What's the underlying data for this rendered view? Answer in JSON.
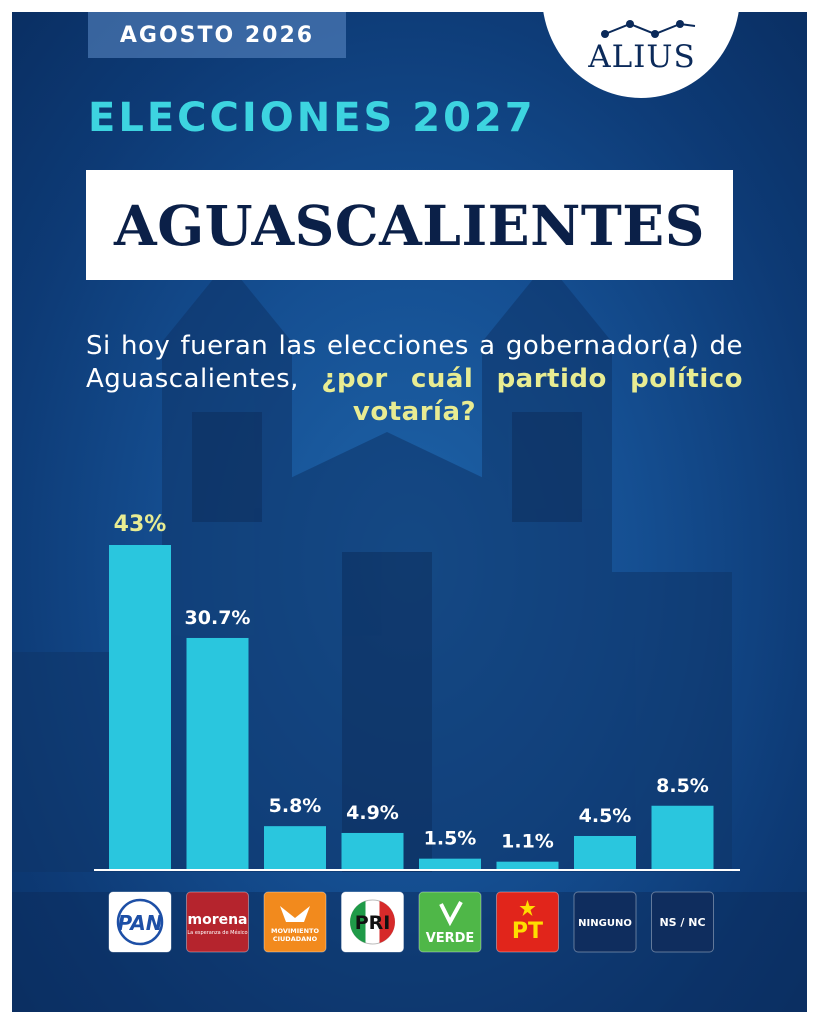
{
  "header": {
    "date": "AGOSTO 2026",
    "brand": "ALIUS"
  },
  "headline": "ELECCIONES 2027",
  "title": "AGUASCALIENTES",
  "question": {
    "text": "Si hoy fueran las elecciones a gobernador(a) de Aguascalientes,",
    "highlight": "¿por cuál partido político votaría?"
  },
  "colors": {
    "bar": "#2ac6de",
    "highlight_label": "#e8ec92",
    "headline": "#3dd4e0",
    "background": "#154f92"
  },
  "chart_data": {
    "type": "bar",
    "categories": [
      "PAN",
      "morena",
      "MOVIMIENTO CIUDADANO",
      "PRI",
      "VERDE",
      "PT",
      "NINGUNO",
      "NS / NC"
    ],
    "values": [
      43,
      30.7,
      5.8,
      4.9,
      1.5,
      1.1,
      4.5,
      8.5
    ],
    "data_labels": [
      "43%",
      "30.7%",
      "5.8%",
      "4.9%",
      "1.5%",
      "1.1%",
      "4.5%",
      "8.5%"
    ],
    "ylim": [
      0,
      43
    ],
    "title": "",
    "xlabel": "",
    "ylabel": "",
    "grid": false
  },
  "logos": [
    {
      "label": "PAN",
      "bg": "#ffffff",
      "fg": "#1d4fa6"
    },
    {
      "label": "morena",
      "sublabel": "La esperanza de México",
      "bg": "#b5242d",
      "fg": "#ffffff"
    },
    {
      "label": "MOVIMIENTO CIUDADANO",
      "bg": "#f28a1d",
      "fg": "#ffffff"
    },
    {
      "label": "PRI",
      "bg": "#ffffff",
      "fg": "#111111"
    },
    {
      "label": "VERDE",
      "bg": "#4fb748",
      "fg": "#ffffff"
    },
    {
      "label": "PT",
      "bg": "#e1251b",
      "fg": "#ffdd00"
    },
    {
      "label": "NINGUNO",
      "bg": "#0f2d5e",
      "fg": "#ffffff"
    },
    {
      "label": "NS / NC",
      "bg": "#0f2d5e",
      "fg": "#ffffff"
    }
  ]
}
